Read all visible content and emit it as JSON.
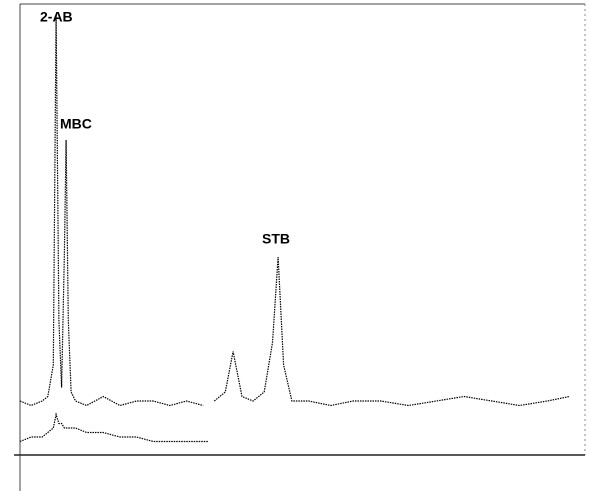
{
  "chart_data": {
    "type": "line",
    "annotations": [
      "2-AB",
      "MBC",
      "STB"
    ],
    "x": [
      0,
      2,
      4,
      5,
      6,
      6.5,
      7,
      7.5,
      8,
      8.3,
      8.7,
      9.2,
      10,
      12,
      15,
      18,
      21,
      24,
      27,
      30,
      33,
      34,
      35,
      37,
      38.4,
      40,
      42,
      44,
      45.5,
      46.5,
      47.5,
      49,
      52,
      56,
      60,
      65,
      70,
      75,
      80,
      85,
      90,
      95,
      99
    ],
    "series": [
      {
        "color": "#000000",
        "values": [
          12,
          11,
          12,
          13,
          20,
          98,
          30,
          15,
          45,
          70,
          30,
          14,
          12,
          11,
          13,
          11,
          12,
          12,
          11,
          12,
          11,
          null,
          12,
          14,
          23,
          13,
          12,
          14,
          25,
          44,
          20,
          12,
          12,
          11,
          12,
          12,
          11,
          12,
          13,
          12,
          11,
          12,
          13
        ]
      },
      {
        "color": "#000000",
        "values": [
          3,
          4,
          4,
          5,
          6,
          9,
          7,
          7,
          6,
          6,
          6,
          6,
          6,
          5,
          5,
          4,
          4,
          3,
          3,
          3,
          3,
          3,
          null,
          null,
          null,
          null,
          null,
          null,
          null,
          null,
          null,
          null,
          null,
          null,
          null,
          null,
          null,
          null,
          null,
          null,
          null,
          null,
          null
        ]
      }
    ],
    "xlim": [
      0,
      100
    ],
    "ylim": [
      0,
      100
    ]
  }
}
